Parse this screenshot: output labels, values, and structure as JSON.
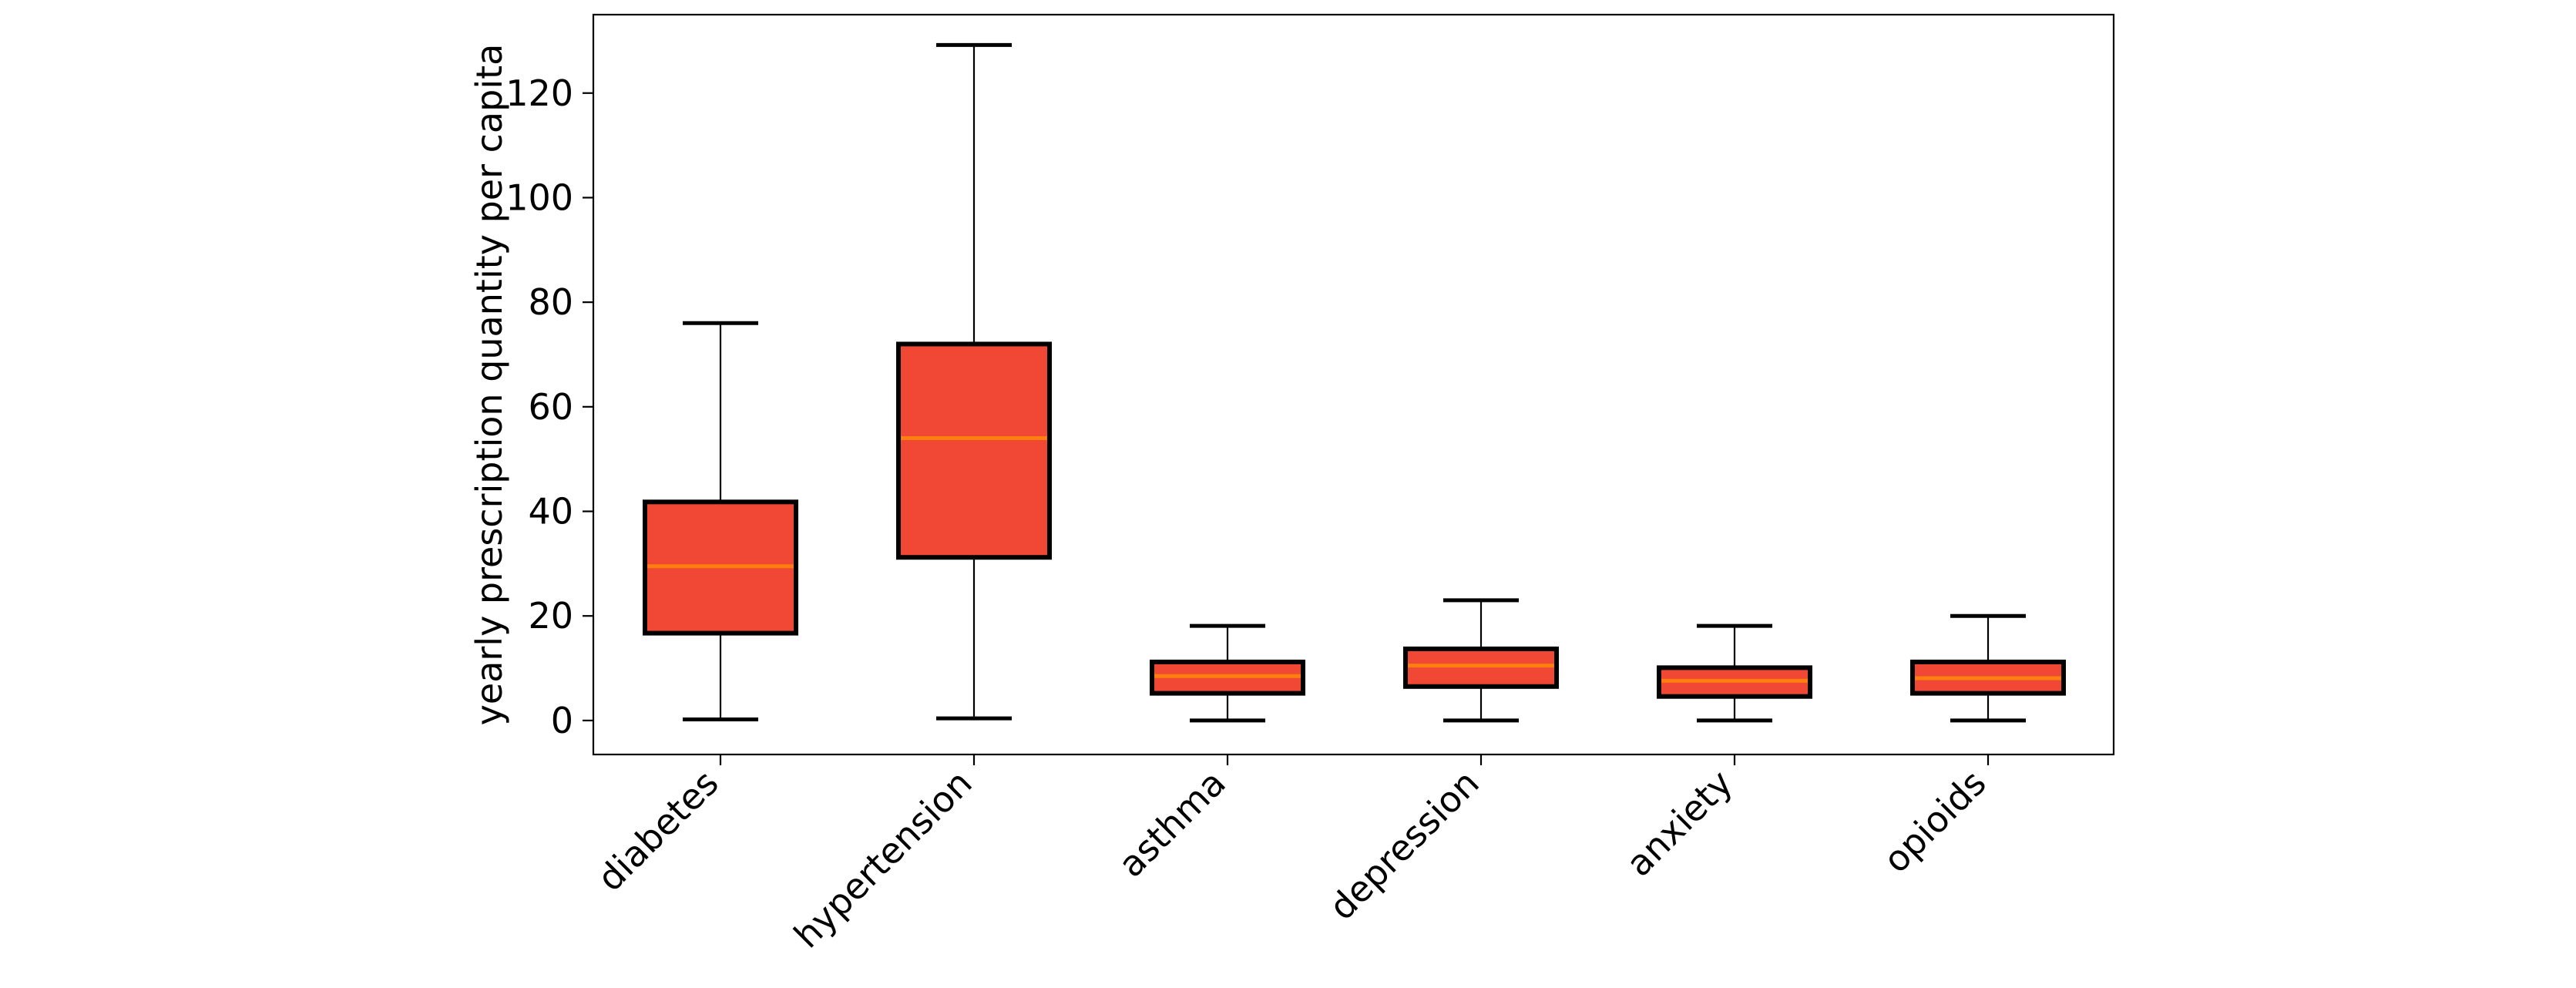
{
  "chart_data": {
    "type": "box",
    "title": "",
    "xlabel": "",
    "ylabel": "yearly prescription quantity per capita",
    "ylim": [
      -6.5,
      135
    ],
    "yticks": [
      0,
      20,
      40,
      60,
      80,
      100,
      120
    ],
    "grid": false,
    "categories": [
      "diabetes",
      "hypertension",
      "asthma",
      "depression",
      "anxiety",
      "opioids"
    ],
    "boxes": [
      {
        "category": "diabetes",
        "whisker_low": 0.2,
        "q1": 16.7,
        "median": 29.5,
        "q3": 41.8,
        "whisker_high": 76.0
      },
      {
        "category": "hypertension",
        "whisker_low": 0.4,
        "q1": 31.2,
        "median": 54.0,
        "q3": 72.0,
        "whisker_high": 129.2
      },
      {
        "category": "asthma",
        "whisker_low": 0.0,
        "q1": 5.2,
        "median": 8.5,
        "q3": 11.2,
        "whisker_high": 18.1
      },
      {
        "category": "depression",
        "whisker_low": 0.0,
        "q1": 6.5,
        "median": 10.5,
        "q3": 13.7,
        "whisker_high": 23.0
      },
      {
        "category": "anxiety",
        "whisker_low": 0.0,
        "q1": 4.6,
        "median": 7.6,
        "q3": 10.1,
        "whisker_high": 18.1
      },
      {
        "category": "opioids",
        "whisker_low": 0.0,
        "q1": 5.2,
        "median": 8.1,
        "q3": 11.2,
        "whisker_high": 20.0
      }
    ],
    "colors": {
      "box_fill": "#f04835",
      "box_edge": "#000000",
      "median": "#ff7f0e",
      "axis": "#000000"
    }
  }
}
